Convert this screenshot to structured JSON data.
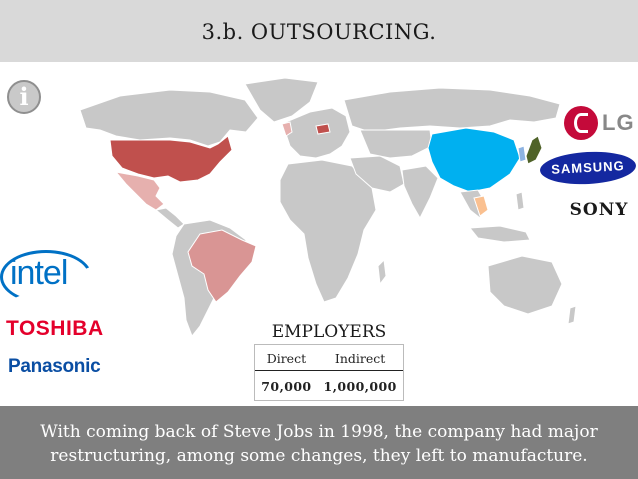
{
  "slide": {
    "title": "3.b. OUTSOURCING.",
    "info_icon": "info-icon",
    "caption": "With coming back of Steve Jobs in 1998, the company had major restructuring, among some changes, they left to manufacture."
  },
  "employers": {
    "heading": "EMPLOYERS",
    "columns": [
      "Direct",
      "Indirect"
    ],
    "values": [
      "70,000",
      "1,000,000"
    ]
  },
  "logos": {
    "lg": "LG",
    "samsung": "SAMSUNG",
    "sony": "SONY",
    "intel": "intel",
    "toshiba": "TOSHIBA",
    "panasonic": "Panasonic"
  },
  "map": {
    "base_color": "#c8c8c8",
    "highlighted_countries": {
      "usa": "#c0504d",
      "mexico": "#e6b0ae",
      "brazil": "#d99594",
      "china": "#00b0f0",
      "japan": "#4f6228",
      "thailand": "#fac090",
      "czech_republic": "#c0504d",
      "ireland": "#e6b0ae"
    }
  }
}
